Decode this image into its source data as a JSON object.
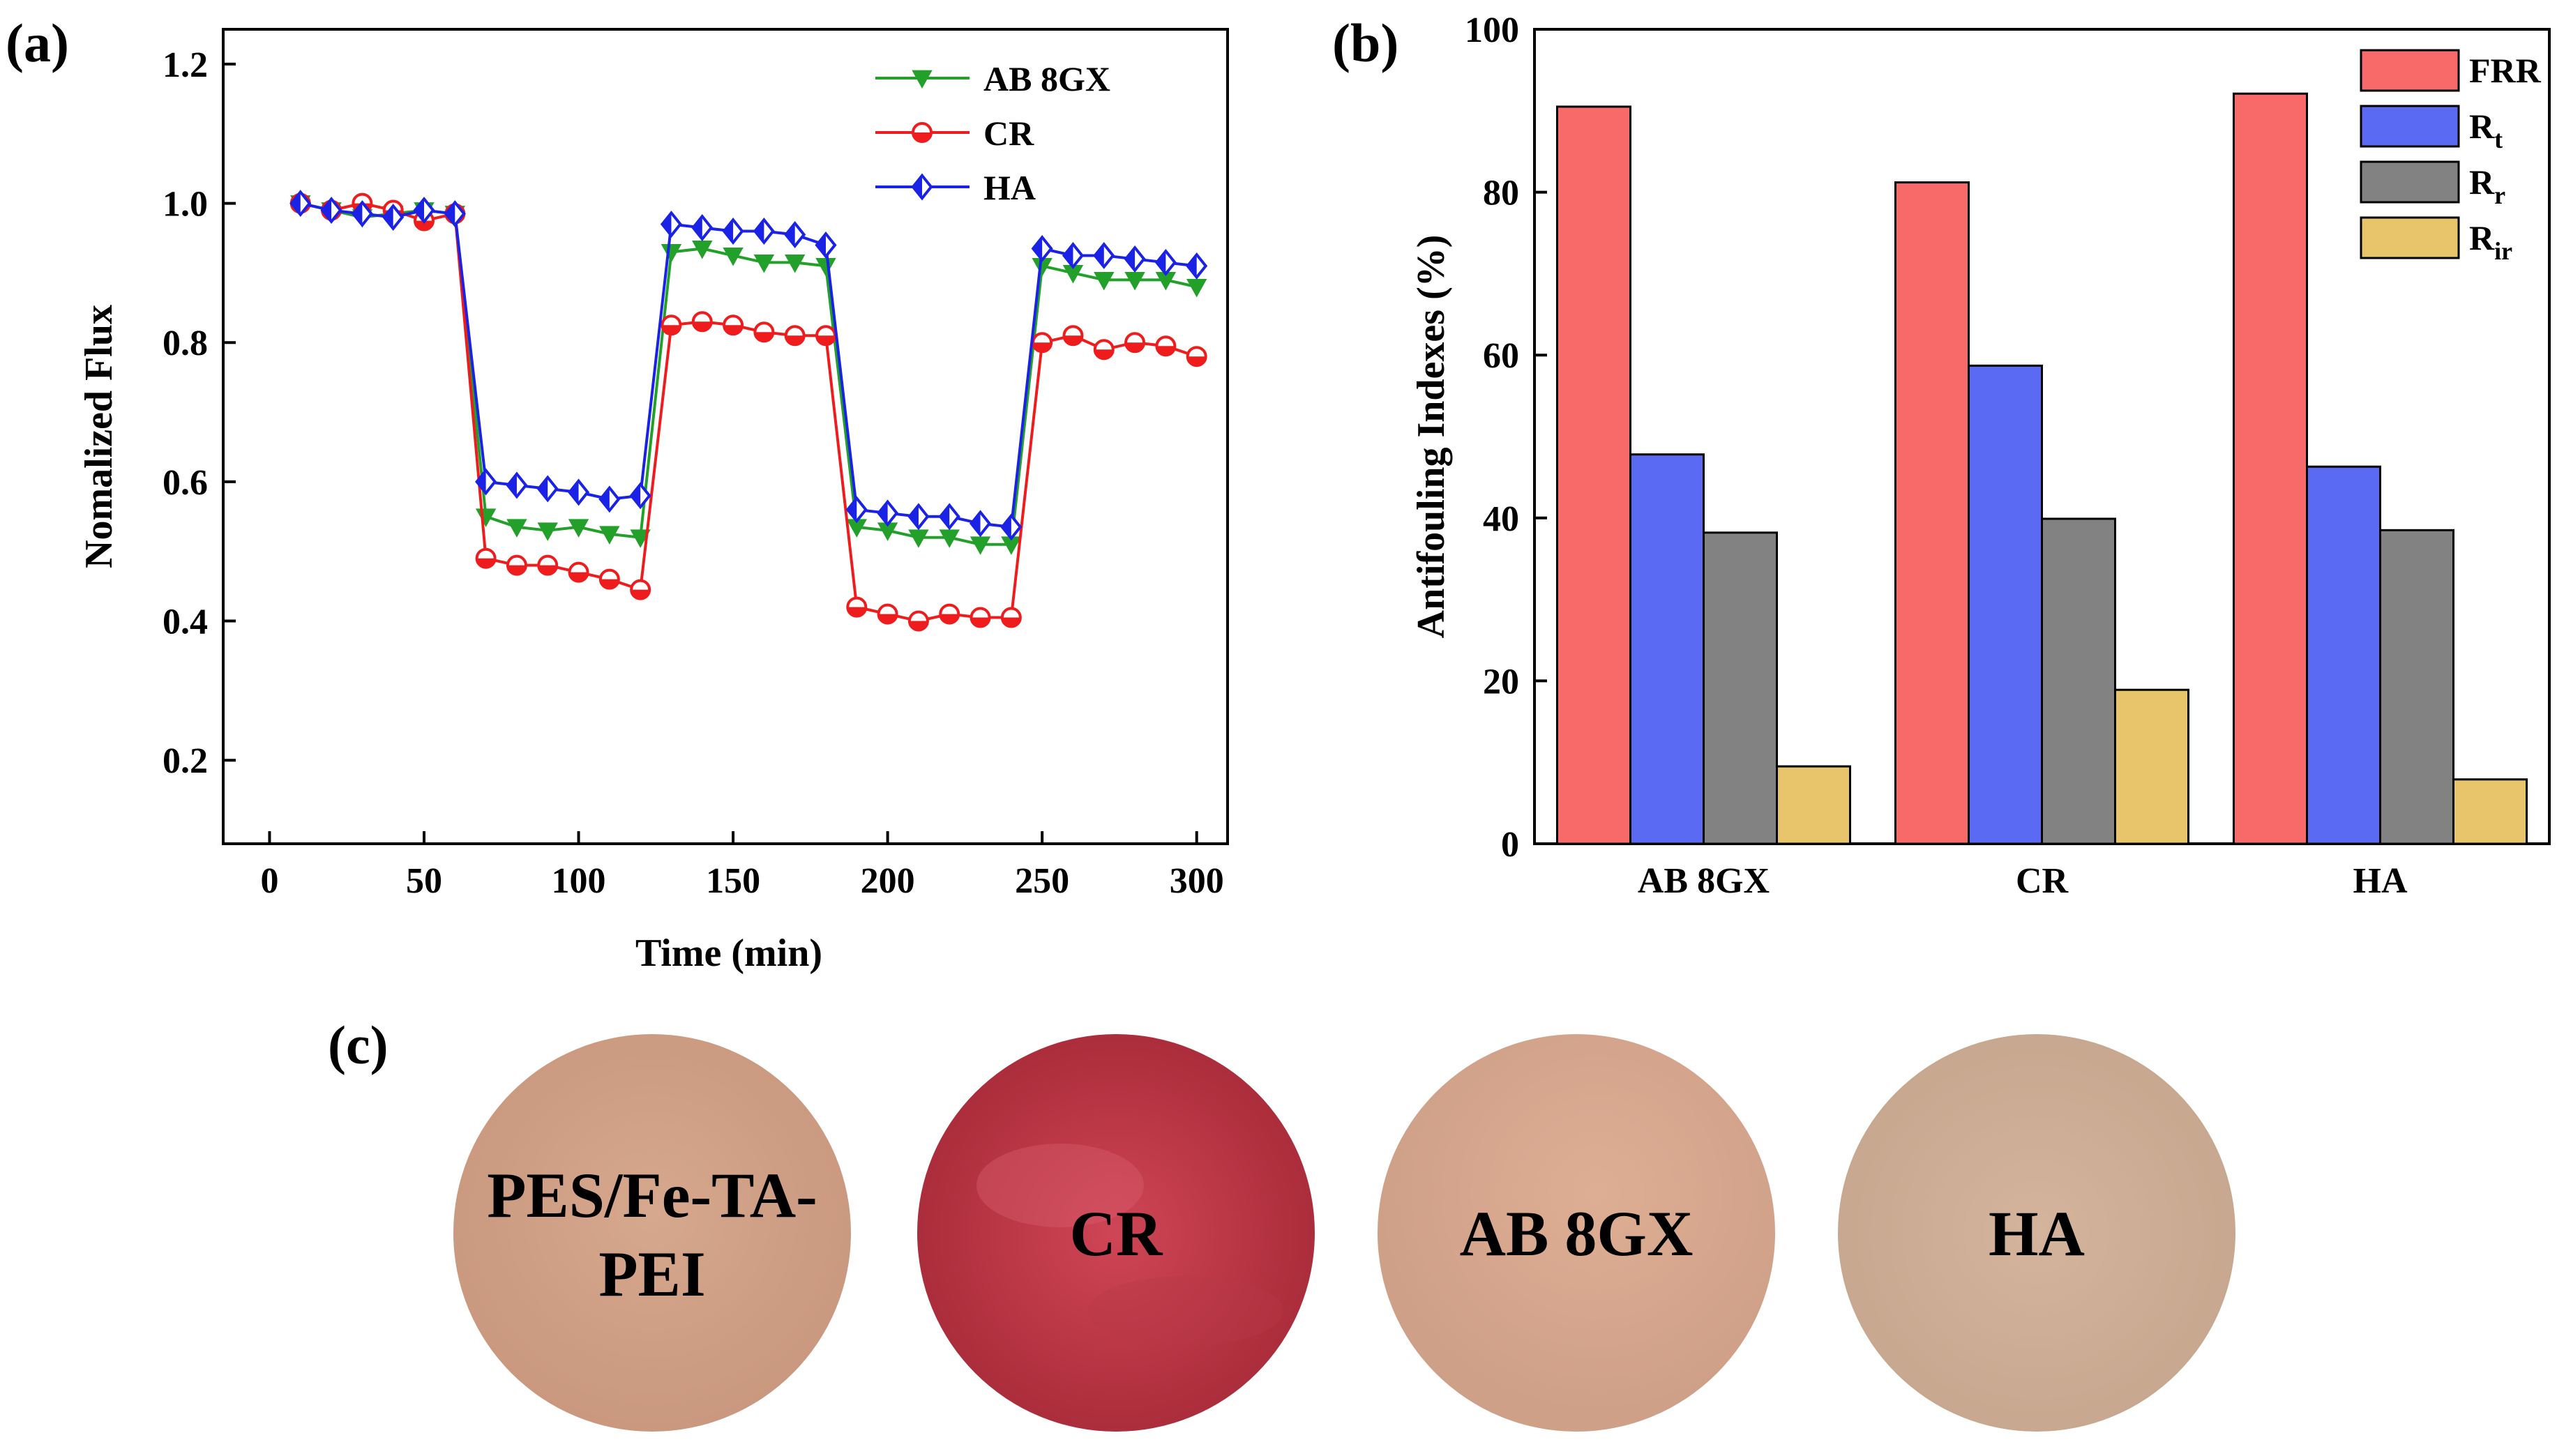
{
  "panels": {
    "a_label": "(a)",
    "b_label": "(b)",
    "c_label": "(c)"
  },
  "chart_data": [
    {
      "type": "line",
      "panel": "(a)",
      "xlabel": "Time (min)",
      "ylabel": "Nomalized Flux",
      "xlim": [
        -15,
        310
      ],
      "ylim": [
        0.08,
        1.25
      ],
      "xticks": [
        0,
        50,
        100,
        150,
        200,
        250,
        300
      ],
      "yticks": [
        0.2,
        0.4,
        0.6,
        0.8,
        1.0,
        1.2
      ],
      "legend_position": "top-right",
      "x": [
        10,
        20,
        30,
        40,
        50,
        60,
        70,
        80,
        90,
        100,
        110,
        120,
        130,
        140,
        150,
        160,
        170,
        180,
        190,
        200,
        210,
        220,
        230,
        240,
        250,
        260,
        270,
        280,
        290,
        300
      ],
      "series": [
        {
          "name": "AB 8GX",
          "color": "#22a02a",
          "marker": "triangle-down",
          "values": [
            1.0,
            0.99,
            0.98,
            0.985,
            0.99,
            0.985,
            0.55,
            0.535,
            0.53,
            0.535,
            0.525,
            0.52,
            0.93,
            0.935,
            0.925,
            0.915,
            0.915,
            0.91,
            0.535,
            0.53,
            0.52,
            0.52,
            0.51,
            0.51,
            0.91,
            0.9,
            0.89,
            0.89,
            0.89,
            0.88
          ]
        },
        {
          "name": "CR",
          "color": "#ee1c1c",
          "marker": "half-circle",
          "values": [
            1.0,
            0.99,
            1.0,
            0.99,
            0.975,
            0.985,
            0.49,
            0.48,
            0.48,
            0.47,
            0.46,
            0.445,
            0.825,
            0.83,
            0.825,
            0.815,
            0.81,
            0.81,
            0.42,
            0.41,
            0.4,
            0.41,
            0.405,
            0.405,
            0.8,
            0.81,
            0.79,
            0.8,
            0.795,
            0.78
          ]
        },
        {
          "name": "HA",
          "color": "#1a22e6",
          "marker": "half-diamond",
          "values": [
            1.0,
            0.99,
            0.985,
            0.98,
            0.99,
            0.985,
            0.6,
            0.595,
            0.59,
            0.585,
            0.575,
            0.58,
            0.97,
            0.965,
            0.96,
            0.96,
            0.955,
            0.94,
            0.56,
            0.555,
            0.55,
            0.55,
            0.54,
            0.535,
            0.935,
            0.925,
            0.925,
            0.92,
            0.915,
            0.91
          ]
        }
      ]
    },
    {
      "type": "bar",
      "panel": "(b)",
      "ylabel": "Antifouling Indexes (%)",
      "ylim": [
        0,
        100
      ],
      "yticks": [
        0,
        20,
        40,
        60,
        80,
        100
      ],
      "categories": [
        "AB 8GX",
        "CR",
        "HA"
      ],
      "legend_position": "top-right",
      "series": [
        {
          "name": "FRR",
          "sub": "",
          "color": "#f86a6a",
          "values": [
            90.5,
            81.2,
            92.1
          ]
        },
        {
          "name": "R",
          "sub": "t",
          "color": "#5a6af2",
          "values": [
            47.8,
            58.7,
            46.3
          ]
        },
        {
          "name": "R",
          "sub": "r",
          "color": "#828282",
          "values": [
            38.2,
            39.9,
            38.5
          ]
        },
        {
          "name": "R",
          "sub": "ir",
          "color": "#e8c46a",
          "values": [
            9.5,
            18.9,
            7.9
          ]
        }
      ]
    }
  ],
  "photos": [
    {
      "label_lines": [
        "PES/Fe-TA-",
        "PEI"
      ],
      "color_center": "#d6a88e",
      "color_edge": "#c9987e"
    },
    {
      "label_lines": [
        "CR"
      ],
      "color_center": "#cf4656",
      "color_edge": "#a82a38"
    },
    {
      "label_lines": [
        "AB 8GX"
      ],
      "color_center": "#deae94",
      "color_edge": "#cfa088"
    },
    {
      "label_lines": [
        "HA"
      ],
      "color_center": "#d4b49c",
      "color_edge": "#c6a78e"
    }
  ]
}
